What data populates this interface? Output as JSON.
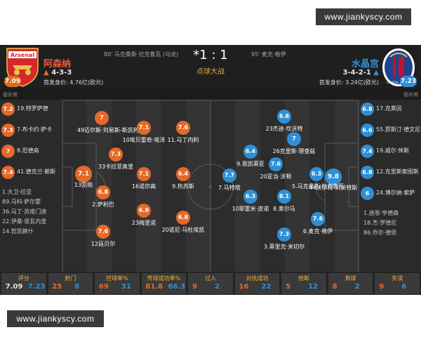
{
  "watermark": "www.jiankyscy.com",
  "header": {
    "home": {
      "crest_text": "Arsenal",
      "name": "阿森纳",
      "formation": "4-3-3",
      "value": "首发身价: 4.76亿(欧元)",
      "rating": "7.09",
      "scorer": "80' 马克桑斯·拉克鲁瓦 (乌龙)",
      "bench_label": "替补席"
    },
    "away": {
      "crest_text": "CRYSTAL PALACE",
      "name": "水晶宫",
      "formation": "3-4-2-1",
      "value": "首发身价: 3.24亿(欧元)",
      "rating": "7.23",
      "scorer": "95' 麦克·格伊",
      "bench_label": "替补席"
    },
    "score": "*1 : 1",
    "subtitle": "点球大战"
  },
  "home_subs": [
    {
      "rating": "7.2",
      "label": "19.特罗萨德"
    },
    {
      "rating": "7.3",
      "label": "7.布卡约·萨卡"
    },
    {
      "rating": "7",
      "label": "8.厄德高"
    },
    {
      "rating": "7.4",
      "label": "41.德克兰·赖斯"
    }
  ],
  "home_unused": [
    "1.大卫·拉亚",
    "89.马科·萨尔蒙",
    "36.马丁·苏维门迪",
    "22.伊桑·恩瓦内里",
    "14.哲凯赖什"
  ],
  "away_subs": [
    {
      "rating": "6.8",
      "label": "17.克莱因"
    },
    {
      "rating": "6.6",
      "label": "55.贾斯汀·德文尼"
    },
    {
      "rating": "7.4",
      "label": "19.威尔·休斯"
    },
    {
      "rating": "6.8",
      "label": "12.克里斯索图斯"
    },
    {
      "rating": "6",
      "label": "24.博尔纳·索萨"
    }
  ],
  "away_unused": [
    "1.迪恩·亨德森",
    "18.杰·罗德尼",
    "86.乔尔·德思"
  ],
  "home_players": [
    {
      "rating": "7.1",
      "label": "13凯帕",
      "gk": true
    },
    {
      "rating": "7",
      "label": "49迈尔斯·刘易斯-斯凯利"
    },
    {
      "rating": "7.3",
      "label": "33卡拉菲奥里"
    },
    {
      "rating": "6.8",
      "label": "2.萨利巴"
    },
    {
      "rating": "7.6",
      "label": "12廷贝尔"
    },
    {
      "rating": "7.1",
      "label": "10埃贝雷奇·埃泽"
    },
    {
      "rating": "7.1",
      "label": "16诺尔高"
    },
    {
      "rating": "6.9",
      "label": "23梅里诺"
    },
    {
      "rating": "7.6",
      "label": "11.马丁内利"
    },
    {
      "rating": "6.4",
      "label": "9.热苏斯"
    },
    {
      "rating": "6.8",
      "label": "20诺尼·马杜埃凯"
    }
  ],
  "away_players": [
    {
      "rating": "9.8",
      "label": "44沃尔特·贝茨特斯",
      "gk": true
    },
    {
      "rating": "6.8",
      "label": "23杰迪·坎沃特"
    },
    {
      "rating": "7",
      "label": "26克里斯·理查兹"
    },
    {
      "rating": "7.6",
      "label": "20亚当·沃顿"
    },
    {
      "rating": "6.3",
      "label": "5.马克桑斯·拉克鲁瓦"
    },
    {
      "rating": "6.4",
      "label": "9.恩凯蒂亚"
    },
    {
      "rating": "7.7",
      "label": "7.马特塔"
    },
    {
      "rating": "6.3",
      "label": "10耶雷米·皮诺"
    },
    {
      "rating": "8.1",
      "label": "8.莱尔马"
    },
    {
      "rating": "7.6",
      "label": "6.麦克·格伊"
    },
    {
      "rating": "7.3",
      "label": "3.蒂里克·米切尔"
    }
  ],
  "stats": [
    {
      "label": "评分",
      "home": "7.09",
      "away": "7.23"
    },
    {
      "label": "射门",
      "home": "25",
      "away": "8"
    },
    {
      "label": "控球率%",
      "home": "69",
      "away": "31"
    },
    {
      "label": "传球成功率%",
      "home": "81.8",
      "away": "66.3"
    },
    {
      "label": "过人",
      "home": "9",
      "away": "2"
    },
    {
      "label": "对抗成功",
      "home": "16",
      "away": "22"
    },
    {
      "label": "抢断",
      "home": "5",
      "away": "12"
    },
    {
      "label": "角球",
      "home": "8",
      "away": "2"
    },
    {
      "label": "失误",
      "home": "9",
      "away": "6"
    }
  ],
  "colors": {
    "home": "#e4692a",
    "away": "#2f8fd6",
    "accent": "#f2b23a",
    "pitch_dark": "#2c2c2c",
    "pitch_light": "#343434"
  }
}
